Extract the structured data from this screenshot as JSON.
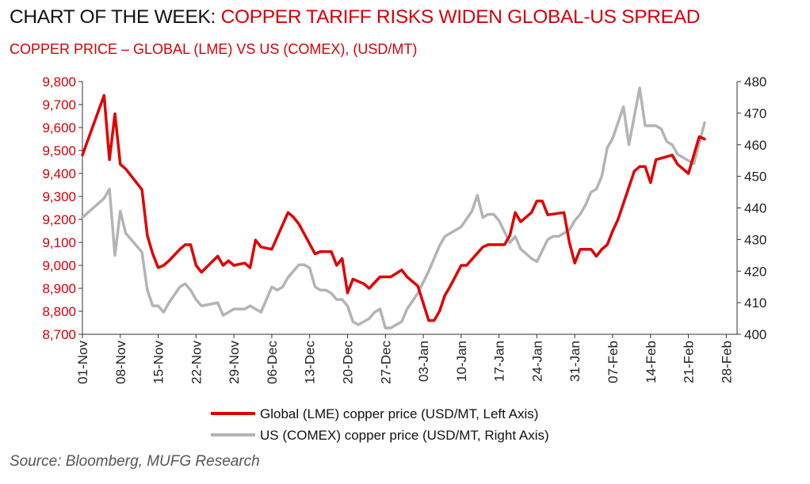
{
  "header": {
    "title_prefix": "CHART OF THE WEEK: ",
    "title_main": "COPPER TARIFF RISKS WIDEN GLOBAL-US SPREAD",
    "subtitle": "COPPER PRICE – GLOBAL (LME) VS US (COMEX), (USD/MT)"
  },
  "footer": {
    "source": "Source: Bloomberg, MUFG Research"
  },
  "colors": {
    "lme": "#e00000",
    "comex": "#b4b4b4",
    "left_axis_text": "#d6000a"
  },
  "chart_data": {
    "type": "line",
    "title": "CHART OF THE WEEK: COPPER TARIFF RISKS WIDEN GLOBAL-US SPREAD",
    "subtitle": "COPPER PRICE – GLOBAL (LME) VS US (COMEX), (USD/MT)",
    "x_ticks": [
      {
        "day": 0,
        "label": "01-Nov"
      },
      {
        "day": 7,
        "label": "08-Nov"
      },
      {
        "day": 14,
        "label": "15-Nov"
      },
      {
        "day": 21,
        "label": "22-Nov"
      },
      {
        "day": 28,
        "label": "29-Nov"
      },
      {
        "day": 35,
        "label": "06-Dec"
      },
      {
        "day": 42,
        "label": "13-Dec"
      },
      {
        "day": 49,
        "label": "20-Dec"
      },
      {
        "day": 56,
        "label": "27-Dec"
      },
      {
        "day": 63,
        "label": "03-Jan"
      },
      {
        "day": 70,
        "label": "10-Jan"
      },
      {
        "day": 77,
        "label": "17-Jan"
      },
      {
        "day": 84,
        "label": "24-Jan"
      },
      {
        "day": 91,
        "label": "31-Jan"
      },
      {
        "day": 98,
        "label": "07-Feb"
      },
      {
        "day": 105,
        "label": "14-Feb"
      },
      {
        "day": 112,
        "label": "21-Feb"
      },
      {
        "day": 119,
        "label": "28-Feb"
      }
    ],
    "x_range": [
      0,
      121
    ],
    "left_axis": {
      "ylim": [
        8700,
        9800
      ],
      "ticks": [
        {
          "value": 9800,
          "label": "9,800"
        },
        {
          "value": 9700,
          "label": "9,700"
        },
        {
          "value": 9600,
          "label": "9,600"
        },
        {
          "value": 9500,
          "label": "9,500"
        },
        {
          "value": 9400,
          "label": "9,400"
        },
        {
          "value": 9300,
          "label": "9,300"
        },
        {
          "value": 9200,
          "label": "9,200"
        },
        {
          "value": 9100,
          "label": "9,100"
        },
        {
          "value": 9000,
          "label": "9,000"
        },
        {
          "value": 8900,
          "label": "8,900"
        },
        {
          "value": 8800,
          "label": "8,800"
        },
        {
          "value": 8700,
          "label": "8,700"
        }
      ]
    },
    "right_axis": {
      "ylim": [
        400,
        480
      ],
      "ticks": [
        {
          "value": 480,
          "label": "480"
        },
        {
          "value": 470,
          "label": "470"
        },
        {
          "value": 460,
          "label": "460"
        },
        {
          "value": 450,
          "label": "450"
        },
        {
          "value": 440,
          "label": "440"
        },
        {
          "value": 430,
          "label": "430"
        },
        {
          "value": 420,
          "label": "420"
        },
        {
          "value": 410,
          "label": "410"
        },
        {
          "value": 400,
          "label": "400"
        }
      ]
    },
    "legend_position": "bottom",
    "grid": false,
    "series": [
      {
        "name": "Global (LME) copper price (USD/MT, Left Axis)",
        "axis": "left",
        "x": [
          0,
          4,
          5,
          6,
          7,
          8,
          11,
          12,
          13,
          14,
          15,
          16,
          18,
          19,
          20,
          21,
          22,
          25,
          26,
          27,
          28,
          30,
          31,
          32,
          33,
          35,
          38,
          39,
          40,
          43,
          44,
          46,
          47,
          48,
          49,
          50,
          52,
          53,
          55,
          56,
          57,
          59,
          60,
          61,
          62,
          64,
          65,
          66,
          67,
          68,
          70,
          71,
          74,
          75,
          78,
          79,
          80,
          81,
          83,
          84,
          85,
          86,
          89,
          90,
          91,
          92,
          94,
          95,
          96,
          97,
          98,
          99,
          100,
          102,
          103,
          104,
          105,
          106,
          109,
          110,
          112,
          114,
          115
        ],
        "values": [
          9480,
          9740,
          9460,
          9660,
          9440,
          9420,
          9330,
          9130,
          9050,
          8990,
          9000,
          9020,
          9070,
          9090,
          9090,
          9000,
          8970,
          9040,
          9000,
          9020,
          9000,
          9010,
          8990,
          9110,
          9080,
          9070,
          9230,
          9210,
          9180,
          9050,
          9060,
          9060,
          9000,
          9030,
          8880,
          8940,
          8920,
          8900,
          8950,
          8950,
          8950,
          8980,
          8950,
          8930,
          8910,
          8760,
          8760,
          8800,
          8870,
          8910,
          9000,
          9000,
          9080,
          9090,
          9090,
          9130,
          9230,
          9190,
          9230,
          9280,
          9280,
          9220,
          9230,
          9100,
          9010,
          9070,
          9070,
          9040,
          9070,
          9090,
          9150,
          9200,
          9270,
          9410,
          9430,
          9430,
          9360,
          9460,
          9480,
          9440,
          9400,
          9560,
          9550
        ]
      },
      {
        "name": "US (COMEX) copper price (USD/MT, Right Axis)",
        "axis": "right",
        "values": [
          437,
          443,
          446,
          425,
          439,
          432,
          426,
          414,
          409,
          409,
          407,
          410,
          415,
          416,
          414,
          411,
          409,
          410,
          406,
          407,
          408,
          408,
          409,
          408,
          407,
          415,
          414,
          415,
          418,
          422,
          422,
          421,
          415,
          414,
          414,
          413,
          411,
          411,
          409,
          404,
          403,
          404,
          405,
          407,
          408,
          402,
          402,
          403,
          404,
          408,
          413,
          420,
          428,
          431,
          432,
          434,
          439,
          444,
          437,
          438,
          438,
          436,
          429,
          431,
          427,
          424,
          423,
          430,
          431,
          431,
          432,
          433,
          436,
          438,
          441,
          445,
          446,
          450,
          459,
          462,
          472,
          460,
          469,
          478,
          466,
          466,
          466,
          465,
          461,
          460,
          457,
          454,
          467
        ],
        "x": [
          0,
          4,
          5,
          6,
          7,
          8,
          11,
          12,
          13,
          14,
          15,
          16,
          18,
          19,
          20,
          21,
          22,
          25,
          26,
          27,
          28,
          30,
          31,
          32,
          33,
          35,
          36,
          37,
          38,
          40,
          41,
          42,
          43,
          44,
          45,
          46,
          47,
          48,
          49,
          50,
          51,
          52,
          53,
          54,
          55,
          56,
          57,
          58,
          59,
          60,
          62,
          64,
          66,
          67,
          68,
          70,
          72,
          73,
          74,
          75,
          76,
          77,
          79,
          80,
          81,
          83,
          84,
          86,
          87,
          88,
          89,
          90,
          91,
          92,
          93,
          94,
          95,
          96,
          97,
          98,
          100,
          101,
          102,
          103,
          104,
          105,
          106,
          107,
          108,
          109,
          110,
          113,
          115
        ]
      }
    ]
  }
}
